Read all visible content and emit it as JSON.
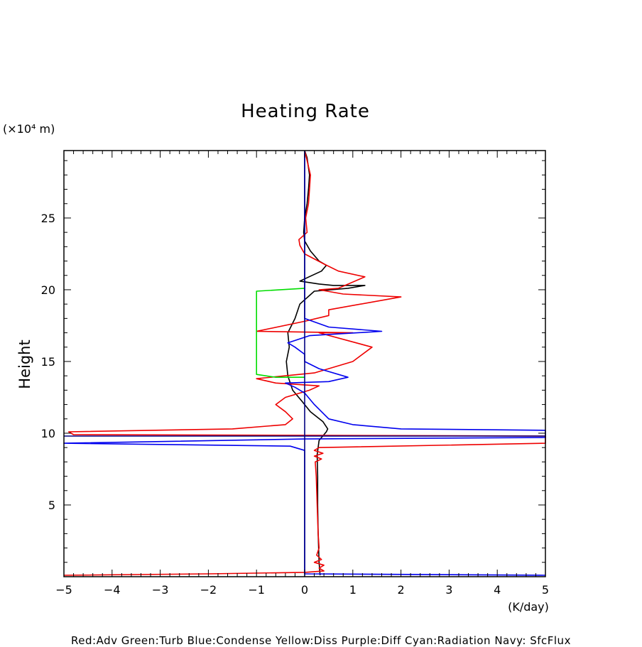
{
  "chart_data": {
    "type": "line",
    "title": "Heating Rate",
    "xlabel": "(K/day)",
    "ylabel": "Height",
    "y_unit": "(×10⁴ m)",
    "xlim": [
      -5,
      5
    ],
    "ylim": [
      0,
      29.7
    ],
    "x_ticks": [
      "−5",
      "−4",
      "−3",
      "−2",
      "−1",
      "0",
      "1",
      "2",
      "3",
      "4",
      "5"
    ],
    "y_ticks": [
      "5",
      "10",
      "15",
      "20",
      "25"
    ],
    "grid": false,
    "legend_text": "Red:Adv  Green:Turb  Blue:Condense  Yellow:Diss  Purple:Diff  Cyan:Radiation  Navy: SfcFlux",
    "series": [
      {
        "name": "Black",
        "color": "#000000",
        "points": [
          [
            0.32,
            0.1
          ],
          [
            0.3,
            1
          ],
          [
            0.28,
            3
          ],
          [
            0.27,
            5
          ],
          [
            0.27,
            7
          ],
          [
            0.26,
            8.5
          ],
          [
            0.3,
            9.5
          ],
          [
            0.45,
            10.1
          ],
          [
            0.48,
            10.3
          ],
          [
            0.38,
            10.8
          ],
          [
            0.12,
            11.5
          ],
          [
            -0.05,
            12.2
          ],
          [
            -0.25,
            13
          ],
          [
            -0.35,
            14
          ],
          [
            -0.38,
            15
          ],
          [
            -0.32,
            16
          ],
          [
            -0.35,
            17
          ],
          [
            -0.2,
            18
          ],
          [
            -0.1,
            19
          ],
          [
            0.2,
            19.9
          ],
          [
            0.9,
            20.1
          ],
          [
            1.25,
            20.3
          ],
          [
            0.6,
            20.3
          ],
          [
            0.3,
            20.4
          ],
          [
            -0.1,
            20.6
          ],
          [
            0.35,
            21.3
          ],
          [
            0.45,
            21.7
          ],
          [
            0.3,
            22
          ],
          [
            0.12,
            22.7
          ],
          [
            0,
            23.4
          ],
          [
            -0.02,
            24
          ],
          [
            0,
            25
          ],
          [
            0.05,
            26
          ],
          [
            0.08,
            27
          ],
          [
            0.1,
            28
          ],
          [
            0.05,
            29.2
          ],
          [
            0,
            29.7
          ]
        ]
      },
      {
        "name": "Red",
        "color": "#ee0000",
        "points": [
          [
            -5,
            0.1
          ],
          [
            -2,
            0.2
          ],
          [
            0,
            0.3
          ],
          [
            0.4,
            0.4
          ],
          [
            0.3,
            0.6
          ],
          [
            0.4,
            0.8
          ],
          [
            0.2,
            1
          ],
          [
            0.35,
            1.2
          ],
          [
            0.25,
            1.5
          ],
          [
            0.3,
            2
          ],
          [
            0.28,
            3
          ],
          [
            0.26,
            5
          ],
          [
            0.24,
            7
          ],
          [
            0.22,
            8
          ],
          [
            0.35,
            8.2
          ],
          [
            0.2,
            8.4
          ],
          [
            0.38,
            8.6
          ],
          [
            0.2,
            8.8
          ],
          [
            0.3,
            9
          ],
          [
            5,
            9.3
          ],
          [
            5,
            9.8
          ],
          [
            -4.8,
            9.9
          ],
          [
            -4.9,
            10.1
          ],
          [
            -1.5,
            10.3
          ],
          [
            -0.4,
            10.6
          ],
          [
            -0.25,
            11
          ],
          [
            -0.4,
            11.5
          ],
          [
            -0.6,
            12
          ],
          [
            -0.4,
            12.5
          ],
          [
            0.1,
            13
          ],
          [
            0.3,
            13.3
          ],
          [
            -0.6,
            13.5
          ],
          [
            -1,
            13.8
          ],
          [
            0.2,
            14.2
          ],
          [
            1,
            15
          ],
          [
            1.4,
            16
          ],
          [
            0.3,
            17
          ],
          [
            1,
            17
          ],
          [
            -1,
            17.1
          ],
          [
            0,
            17.8
          ],
          [
            0.5,
            18.2
          ],
          [
            0.5,
            18.6
          ],
          [
            2,
            19.5
          ],
          [
            0.8,
            19.7
          ],
          [
            0.3,
            20
          ],
          [
            0.7,
            20.1
          ],
          [
            1.25,
            20.9
          ],
          [
            0.7,
            21.3
          ],
          [
            0.4,
            21.8
          ],
          [
            0,
            22.5
          ],
          [
            -0.1,
            23.1
          ],
          [
            -0.12,
            23.5
          ],
          [
            0.05,
            24
          ],
          [
            0.02,
            25
          ],
          [
            0.08,
            26
          ],
          [
            0.1,
            27
          ],
          [
            0.12,
            28
          ],
          [
            0.05,
            29
          ],
          [
            0,
            29.7
          ]
        ]
      },
      {
        "name": "Green",
        "color": "#00dd00",
        "points": [
          [
            0,
            13.9
          ],
          [
            -0.6,
            13.9
          ],
          [
            -1,
            14.1
          ],
          [
            -1,
            15
          ],
          [
            -1,
            17
          ],
          [
            -1,
            18
          ],
          [
            -1,
            19.9
          ],
          [
            0,
            20.1
          ]
        ]
      },
      {
        "name": "Blue",
        "color": "#0000ee",
        "points": [
          [
            5,
            0.1
          ],
          [
            0,
            0.2
          ],
          [
            0,
            8.8
          ],
          [
            -0.3,
            9.1
          ],
          [
            -5,
            9.3
          ],
          [
            0,
            9.6
          ],
          [
            5,
            9.7
          ],
          [
            5,
            10.2
          ],
          [
            2,
            10.3
          ],
          [
            1,
            10.6
          ],
          [
            0.5,
            11
          ],
          [
            0.2,
            12
          ],
          [
            0,
            12.8
          ],
          [
            -0.2,
            13.2
          ],
          [
            -0.4,
            13.5
          ],
          [
            0.5,
            13.6
          ],
          [
            0.9,
            13.9
          ],
          [
            0.3,
            14.5
          ],
          [
            0,
            15
          ],
          [
            0,
            15.5
          ],
          [
            -0.2,
            16
          ],
          [
            -0.35,
            16.3
          ],
          [
            0.1,
            16.8
          ],
          [
            1.6,
            17.1
          ],
          [
            0.5,
            17.4
          ],
          [
            0,
            18
          ],
          [
            0,
            29.7
          ]
        ]
      },
      {
        "name": "Navy",
        "color": "#000080",
        "points": [
          [
            0,
            0
          ],
          [
            0,
            29.7
          ]
        ]
      },
      {
        "name": "Navy",
        "color": "#000080",
        "points": [
          [
            -5,
            9.8
          ],
          [
            5,
            9.8
          ]
        ]
      }
    ]
  }
}
